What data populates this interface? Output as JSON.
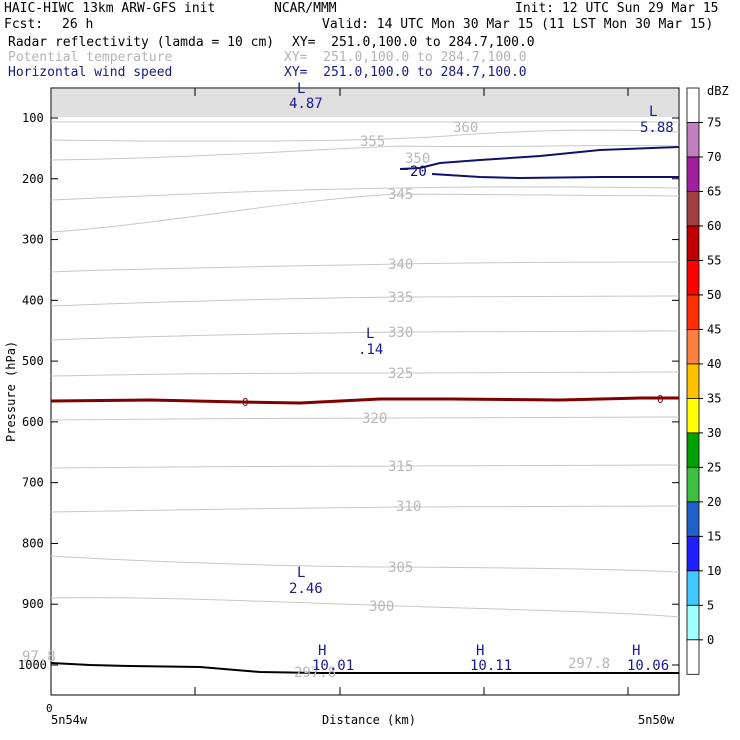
{
  "header": {
    "model": "HAIC-HIWC 13km ARW-GFS init",
    "org": "NCAR/MMM",
    "init": "Init: 12 UTC Sun 29 Mar 15",
    "fcst_label": "Fcst:",
    "fcst_value": "26 h",
    "valid": "Valid: 14 UTC Mon 30 Mar 15 (11 LST Mon 30 Mar 15)",
    "fields": [
      {
        "name": "Radar reflectivity (lamda = 10 cm)",
        "xy": "XY=  251.0,100.0 to 284.7,100.0",
        "color": "#000000"
      },
      {
        "name": "Potential temperature",
        "xy": "XY=  251.0,100.0 to 284.7,100.0",
        "color": "#b4b4b4"
      },
      {
        "name": "Horizontal wind speed",
        "xy": "XY=  251.0,100.0 to 284.7,100.0",
        "color": "#1a1a80"
      }
    ]
  },
  "chart_data": {
    "type": "contour",
    "xlabel": "Distance (km)",
    "ylabel": "Pressure (hPa)",
    "x_start_label": "5n54w",
    "x_end_label": "5n50w",
    "x_zero_label": "0",
    "yticks": [
      100,
      200,
      300,
      400,
      500,
      600,
      700,
      800,
      900,
      1000
    ],
    "ylim": [
      1050,
      50
    ],
    "colorbar": {
      "unit": "dBZ",
      "levels": [
        0,
        5,
        10,
        15,
        20,
        25,
        30,
        35,
        40,
        45,
        50,
        55,
        60,
        65,
        70,
        75
      ],
      "colors": [
        "#ffffff",
        "#a0ffff",
        "#40c8ff",
        "#2020ff",
        "#2060c8",
        "#40c040",
        "#00a000",
        "#ffff00",
        "#ffc000",
        "#ff8040",
        "#ff3000",
        "#ff0000",
        "#c00000",
        "#a04040",
        "#a020a0",
        "#c080c0",
        "#ffffff"
      ]
    },
    "theta_labels": [
      "360",
      "355",
      "350",
      "345",
      "340",
      "335",
      "330",
      "325",
      "320",
      "315",
      "310",
      "305",
      "300"
    ],
    "freezing_level_label": "0",
    "wind_contour_label": "20",
    "surface_labels": [
      "97.8",
      "297.8",
      "297.8"
    ],
    "extrema": [
      {
        "type": "L",
        "value": "4.87"
      },
      {
        "type": "L",
        "value": "5.88"
      },
      {
        "type": "L",
        "value": ".14"
      },
      {
        "type": "L",
        "value": "2.46"
      },
      {
        "type": "H",
        "value": "10.01"
      },
      {
        "type": "H",
        "value": "10.11"
      },
      {
        "type": "H",
        "value": "10.06"
      }
    ]
  }
}
